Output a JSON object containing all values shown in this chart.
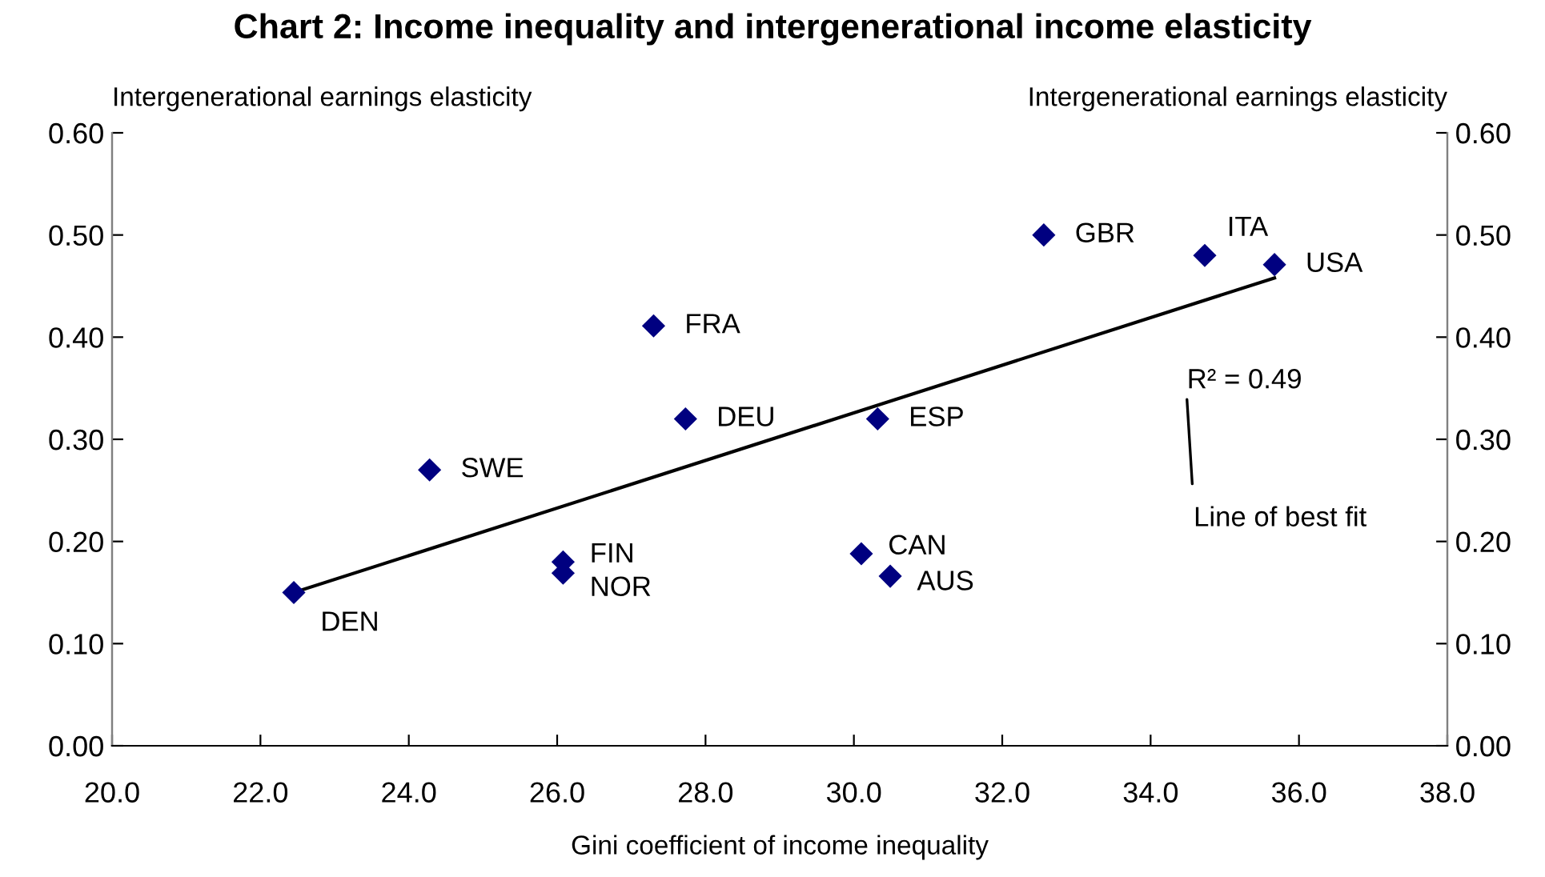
{
  "chart_data": {
    "type": "scatter",
    "title": "Chart 2: Income inequality and intergenerational income elasticity",
    "xlabel": "Gini coefficient of income inequality",
    "ylabel": "Intergenerational earnings elasticity",
    "y2label": "Intergenerational earnings elasticity",
    "series": [
      {
        "color": "#000080",
        "marker": "diamond",
        "x": [
          22.45,
          24.28,
          26.08,
          26.08,
          27.3,
          27.73,
          30.32,
          30.1,
          30.49,
          32.56,
          34.73,
          35.67
        ],
        "values": [
          0.15,
          0.27,
          0.18,
          0.169,
          0.411,
          0.32,
          0.32,
          0.188,
          0.166,
          0.5,
          0.48,
          0.471
        ]
      },
      {
        "type": "line",
        "color": "#000000",
        "x": [
          22.45,
          35.67
        ],
        "values": [
          0.15,
          0.458
        ]
      }
    ],
    "annotations": [
      {
        "text": "DEN",
        "x": 22.45,
        "y": 0.15
      },
      {
        "text": "SWE",
        "x": 24.28,
        "y": 0.27
      },
      {
        "text": "FIN",
        "x": 26.08,
        "y": 0.18
      },
      {
        "text": "NOR",
        "x": 26.08,
        "y": 0.169
      },
      {
        "text": "FRA",
        "x": 27.3,
        "y": 0.411
      },
      {
        "text": "DEU",
        "x": 27.73,
        "y": 0.32
      },
      {
        "text": "ESP",
        "x": 30.32,
        "y": 0.32
      },
      {
        "text": "CAN",
        "x": 30.1,
        "y": 0.188
      },
      {
        "text": "AUS",
        "x": 30.49,
        "y": 0.166
      },
      {
        "text": "GBR",
        "x": 32.56,
        "y": 0.5
      },
      {
        "text": "ITA",
        "x": 34.73,
        "y": 0.48
      },
      {
        "text": "USA",
        "x": 35.67,
        "y": 0.471
      },
      "R² = 0.49",
      "Line of best fit"
    ],
    "xlim": [
      20,
      38
    ],
    "xticks": [
      {
        "value": 20,
        "label": "20.0"
      },
      {
        "value": 22,
        "label": "22.0"
      },
      {
        "value": 24,
        "label": "24.0"
      },
      {
        "value": 26,
        "label": "26.0"
      },
      {
        "value": 28,
        "label": "28.0"
      },
      {
        "value": 30,
        "label": "30.0"
      },
      {
        "value": 32,
        "label": "32.0"
      },
      {
        "value": 34,
        "label": "34.0"
      },
      {
        "value": 36,
        "label": "36.0"
      },
      {
        "value": 38,
        "label": "38.0"
      }
    ],
    "ylim": [
      0,
      0.6
    ],
    "yticks": [
      {
        "value": 0,
        "label": "0.00"
      },
      {
        "value": 0.1,
        "label": "0.10"
      },
      {
        "value": 0.2,
        "label": "0.20"
      },
      {
        "value": 0.3,
        "label": "0.30"
      },
      {
        "value": 0.4,
        "label": "0.40"
      },
      {
        "value": 0.5,
        "label": "0.50"
      },
      {
        "value": 0.6,
        "label": "0.60"
      }
    ],
    "y2lim": [
      0,
      0.6
    ],
    "y2ticks": [
      {
        "value": 0,
        "label": "0.00"
      },
      {
        "value": 0.1,
        "label": "0.10"
      },
      {
        "value": 0.2,
        "label": "0.20"
      },
      {
        "value": 0.3,
        "label": "0.30"
      },
      {
        "value": 0.4,
        "label": "0.40"
      },
      {
        "value": 0.5,
        "label": "0.50"
      },
      {
        "value": 0.6,
        "label": "0.60"
      }
    ],
    "grid": false
  }
}
